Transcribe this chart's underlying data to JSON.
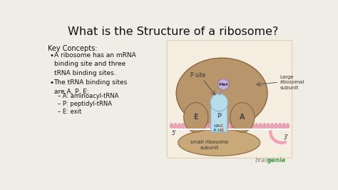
{
  "bg_color": "#f0ede6",
  "diagram_bg": "#f5ede0",
  "title": "What is the Structure of a ribosome?",
  "title_fontsize": 11.5,
  "title_color": "#111111",
  "key_concepts_label": "Key Concepts:",
  "bullet1": "A ribosome has an mRNA\nbinding site and three\ntRNA binding sites.",
  "bullet2": "The tRNA binding sites\nare A, P, E:",
  "sub_bullets": [
    "– A: aminoacyl-tRNA",
    "– P: peptidyl-tRNA",
    "– E: exit"
  ],
  "text_color": "#111111",
  "text_fontsize": 6.5,
  "large_subunit_color": "#b8956a",
  "large_subunit_edge": "#8a6540",
  "small_subunit_color": "#c9a87a",
  "small_subunit_edge": "#9a7550",
  "trna_color": "#b8dcea",
  "trna_edge": "#80b0c8",
  "mrna_color": "#f0a0b8",
  "mrna_edge": "#d08090",
  "met_color": "#c8b0d8",
  "met_edge": "#9080b0",
  "label_color": "#333333",
  "site_label_color": "#444444",
  "codon_colors": [
    "#4060a0",
    "#508050",
    "#b04040",
    "#4060a0",
    "#508050",
    "#b04040"
  ],
  "brain_color": "#888888",
  "genie_color": "#4a9a4a"
}
